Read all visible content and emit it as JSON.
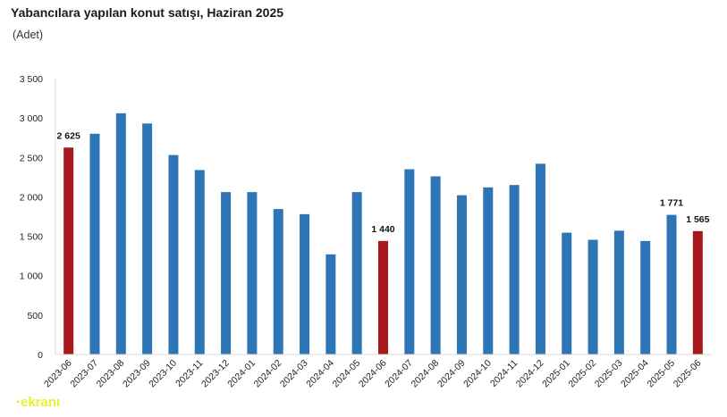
{
  "chart_data": {
    "type": "bar",
    "title": "Yabancılara yapılan konut satışı, Haziran 2025",
    "subtitle": "(Adet)",
    "xlabel": "",
    "ylabel": "",
    "ylim": [
      0,
      3500
    ],
    "yticks": [
      0,
      500,
      1000,
      1500,
      2000,
      2500,
      3000,
      3500
    ],
    "ytick_labels": [
      "0",
      "500",
      "1 000",
      "1 500",
      "2 000",
      "2 500",
      "3 000",
      "3 500"
    ],
    "grid": false,
    "legend": "none",
    "categories": [
      "2023-06",
      "2023-07",
      "2023-08",
      "2023-09",
      "2023-10",
      "2023-11",
      "2023-12",
      "2024-01",
      "2024-02",
      "2024-03",
      "2024-04",
      "2024-05",
      "2024-06",
      "2024-07",
      "2024-08",
      "2024-09",
      "2024-10",
      "2024-11",
      "2024-12",
      "2025-01",
      "2025-02",
      "2025-03",
      "2025-04",
      "2025-05",
      "2025-06"
    ],
    "values": [
      2625,
      2800,
      3060,
      2930,
      2530,
      2340,
      2060,
      2060,
      1845,
      1780,
      1270,
      2060,
      1440,
      2350,
      2260,
      2020,
      2120,
      2150,
      2420,
      1545,
      1455,
      1570,
      1440,
      1771,
      1565
    ],
    "highlight": [
      0,
      12,
      24
    ],
    "colors": {
      "normal": "#2e75b6",
      "highlight": "#a6191c"
    },
    "data_labels": [
      {
        "index": 0,
        "text": "2 625"
      },
      {
        "index": 12,
        "text": "1 440"
      },
      {
        "index": 23,
        "text": "1 771"
      },
      {
        "index": 24,
        "text": "1 565"
      }
    ]
  },
  "watermark": {
    "text": "ekranı",
    "color": "#e8f230"
  }
}
